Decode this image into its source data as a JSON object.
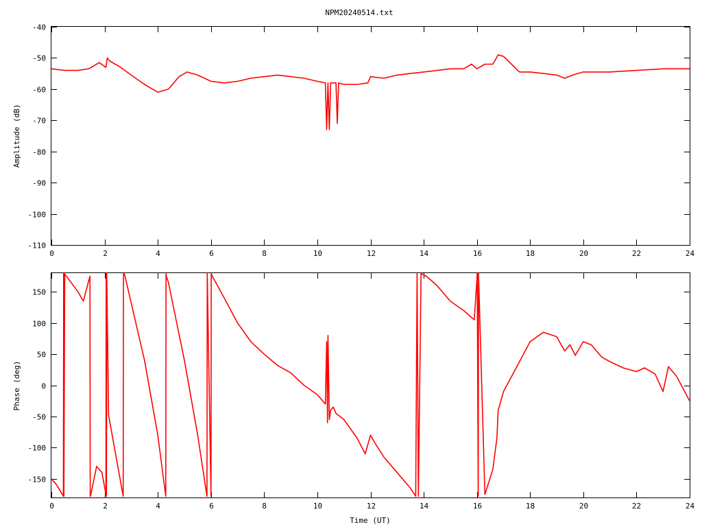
{
  "title": "NPM20240514.txt",
  "colors": {
    "trace": "#ff0000",
    "axes": "#000000",
    "background": "#ffffff"
  },
  "chart_data": [
    {
      "type": "line",
      "ylabel": "Amplitude (dB)",
      "xlim": [
        0,
        24
      ],
      "ylim": [
        -110,
        -40
      ],
      "xticks": [
        "0",
        "2",
        "4",
        "6",
        "8",
        "10",
        "12",
        "14",
        "16",
        "18",
        "20",
        "22",
        "24"
      ],
      "yticks": [
        "-40",
        "-50",
        "-60",
        "-70",
        "-80",
        "-90",
        "-100",
        "-110"
      ],
      "grid": false,
      "series": [
        {
          "x": [
            0,
            0.5,
            1,
            1.4,
            1.8,
            2.05,
            2.1,
            2.2,
            2.6,
            3.0,
            3.5,
            4.0,
            4.4,
            4.8,
            5.1,
            5.5,
            6.0,
            6.5,
            7.0,
            7.5,
            8.0,
            8.5,
            9.0,
            9.5,
            10.0,
            10.3,
            10.35,
            10.4,
            10.45,
            10.5,
            10.7,
            10.75,
            10.8,
            11.0,
            11.5,
            11.9,
            12.0,
            12.5,
            13.0,
            13.5,
            14.0,
            14.5,
            15.0,
            15.5,
            15.8,
            16.0,
            16.3,
            16.6,
            16.8,
            17.0,
            17.3,
            17.6,
            18.0,
            18.5,
            19.0,
            19.3,
            19.6,
            20.0,
            21.0,
            22.0,
            23.0,
            23.5,
            24.0
          ],
          "y": [
            -53.5,
            -54,
            -54,
            -53.5,
            -51.5,
            -53,
            -50,
            -51,
            -53,
            -55.5,
            -58.5,
            -61,
            -60,
            -56,
            -54.5,
            -55.5,
            -57.5,
            -58,
            -57.5,
            -56.5,
            -56,
            -55.5,
            -56,
            -56.5,
            -57.5,
            -58,
            -73,
            -58,
            -73,
            -58,
            -58,
            -71,
            -58,
            -58.5,
            -58.5,
            -58,
            -56,
            -56.5,
            -55.5,
            -55,
            -54.5,
            -54,
            -53.5,
            -53.5,
            -52,
            -53.5,
            -52,
            -52,
            -49,
            -49.5,
            -52,
            -54.5,
            -54.5,
            -55,
            -55.5,
            -56.5,
            -55.5,
            -54.5,
            -54.5,
            -54,
            -53.5,
            -53.5,
            -53.5
          ]
        }
      ]
    },
    {
      "type": "line",
      "ylabel": "Phase (deg)",
      "xlabel": "Time (UT)",
      "xlim": [
        0,
        24
      ],
      "ylim": [
        -180,
        180
      ],
      "xticks": [
        "0",
        "2",
        "4",
        "6",
        "8",
        "10",
        "12",
        "14",
        "16",
        "18",
        "20",
        "22",
        "24"
      ],
      "yticks": [
        "150",
        "100",
        "50",
        "0",
        "-50",
        "-100",
        "-150"
      ],
      "grid": false,
      "series": [
        {
          "x": [
            0,
            0.2,
            0.45,
            0.46,
            0.47,
            0.5,
            0.51,
            1.0,
            1.2,
            1.45,
            1.46,
            1.47,
            1.7,
            1.9,
            2.05,
            2.06,
            2.07,
            2.08,
            2.15,
            2.7,
            2.71,
            2.75,
            3.5,
            4.0,
            4.3,
            4.31,
            4.32,
            4.4,
            5.0,
            5.5,
            5.85,
            5.86,
            6.0,
            6.01,
            6.02,
            6.05,
            6.5,
            7.0,
            7.5,
            8.0,
            8.5,
            9.0,
            9.5,
            10.0,
            10.3,
            10.35,
            10.38,
            10.4,
            10.45,
            10.5,
            10.6,
            10.7,
            11.0,
            11.5,
            11.8,
            12.0,
            12.2,
            12.5,
            13.0,
            13.5,
            13.7,
            13.75,
            13.8,
            13.9,
            13.95,
            14.1,
            14.5,
            15.0,
            15.5,
            15.9,
            16.0,
            16.01,
            16.05,
            16.06,
            16.3,
            16.6,
            16.75,
            16.8,
            17.0,
            17.5,
            18.0,
            18.5,
            19.0,
            19.3,
            19.5,
            19.7,
            20.0,
            20.3,
            20.7,
            21.0,
            21.5,
            22.0,
            22.3,
            22.7,
            23.0,
            23.2,
            23.5,
            24.0
          ],
          "y": [
            -150,
            -160,
            -178,
            180,
            -178,
            180,
            178,
            150,
            135,
            175,
            -178,
            -178,
            -130,
            -140,
            -175,
            180,
            -178,
            180,
            -48,
            -178,
            180,
            178,
            40,
            -80,
            -178,
            180,
            175,
            165,
            40,
            -80,
            -178,
            180,
            -178,
            180,
            178,
            175,
            140,
            100,
            70,
            50,
            32,
            20,
            0,
            -15,
            -30,
            70,
            -60,
            80,
            -55,
            -40,
            -35,
            -45,
            -55,
            -85,
            -110,
            -80,
            -95,
            -115,
            -140,
            -165,
            -178,
            180,
            -178,
            180,
            178,
            175,
            160,
            135,
            120,
            105,
            170,
            180,
            -178,
            180,
            -175,
            -135,
            -85,
            -40,
            -10,
            30,
            70,
            85,
            78,
            55,
            65,
            48,
            70,
            65,
            45,
            38,
            28,
            22,
            28,
            18,
            -10,
            30,
            15,
            -25
          ]
        }
      ]
    }
  ]
}
